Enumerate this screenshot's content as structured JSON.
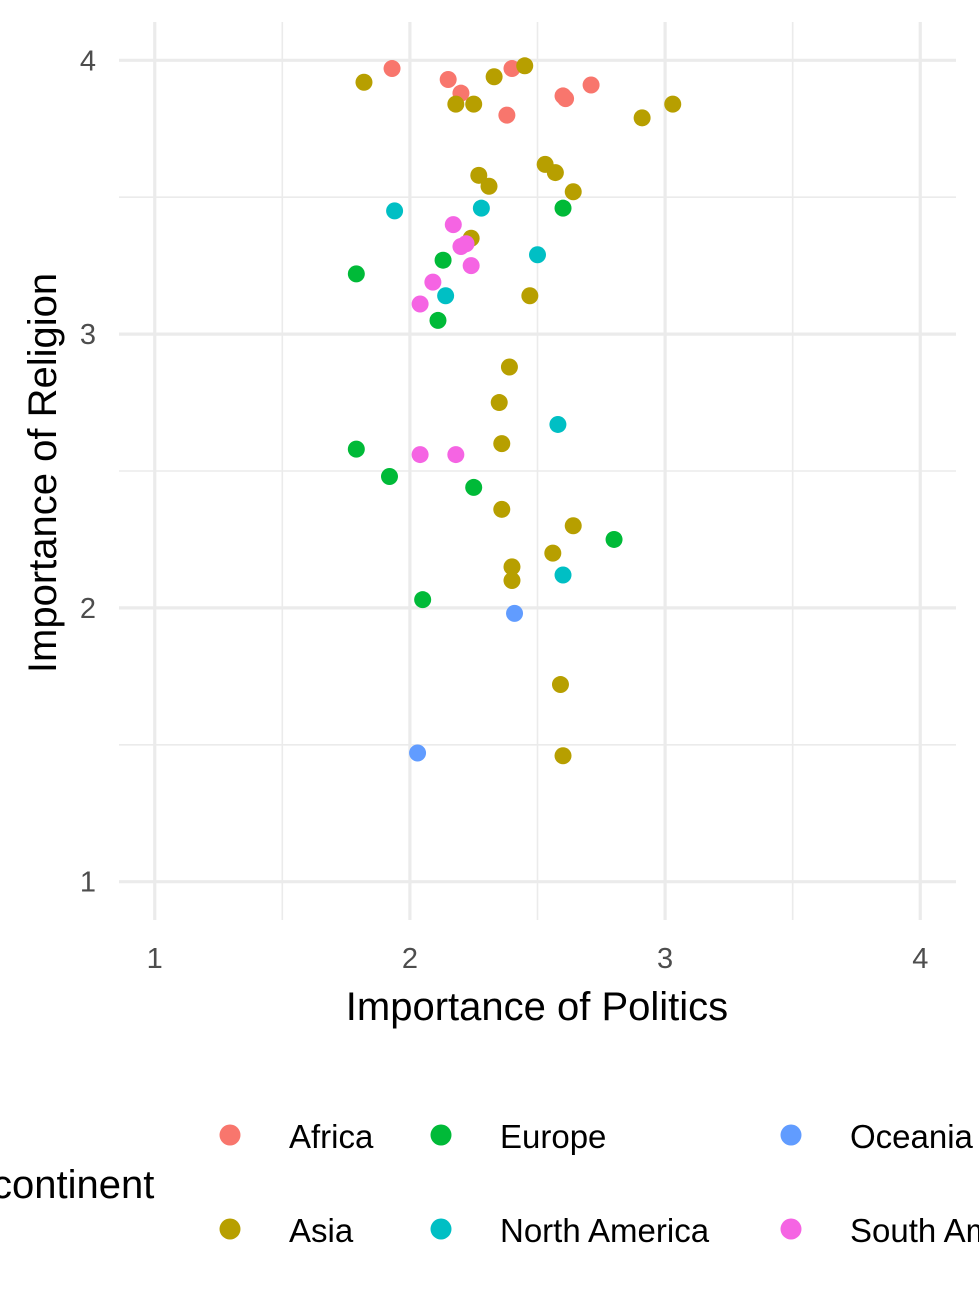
{
  "chart_data": {
    "type": "scatter",
    "xlabel": "Importance of Politics",
    "ylabel": "Importance of Religion",
    "xlim": [
      0.86,
      4.14
    ],
    "ylim": [
      0.86,
      4.14
    ],
    "xticks": [
      "1",
      "2",
      "3",
      "4"
    ],
    "yticks": [
      "1",
      "2",
      "3",
      "4"
    ],
    "grid": true,
    "legend": {
      "title": "continent",
      "position": "bottom",
      "entries": [
        "Africa",
        "Asia",
        "Europe",
        "North America",
        "Oceania",
        "South America"
      ]
    },
    "series": [
      {
        "name": "Africa",
        "color": "#F8766D",
        "points": [
          [
            1.93,
            3.97
          ],
          [
            2.15,
            3.93
          ],
          [
            2.2,
            3.88
          ],
          [
            2.4,
            3.97
          ],
          [
            2.38,
            3.8
          ],
          [
            2.6,
            3.87
          ],
          [
            2.61,
            3.86
          ],
          [
            2.71,
            3.91
          ]
        ]
      },
      {
        "name": "Asia",
        "color": "#B79F00",
        "points": [
          [
            1.82,
            3.92
          ],
          [
            2.18,
            3.84
          ],
          [
            2.25,
            3.84
          ],
          [
            2.33,
            3.94
          ],
          [
            2.45,
            3.98
          ],
          [
            2.91,
            3.79
          ],
          [
            3.03,
            3.84
          ],
          [
            2.27,
            3.58
          ],
          [
            2.31,
            3.54
          ],
          [
            2.53,
            3.62
          ],
          [
            2.57,
            3.59
          ],
          [
            2.64,
            3.52
          ],
          [
            2.24,
            3.35
          ],
          [
            2.47,
            3.14
          ],
          [
            2.39,
            2.88
          ],
          [
            2.35,
            2.75
          ],
          [
            2.36,
            2.6
          ],
          [
            2.36,
            2.36
          ],
          [
            2.64,
            2.3
          ],
          [
            2.56,
            2.2
          ],
          [
            2.4,
            2.15
          ],
          [
            2.4,
            2.1
          ],
          [
            2.59,
            1.72
          ],
          [
            2.6,
            1.46
          ]
        ]
      },
      {
        "name": "Europe",
        "color": "#00BA38",
        "points": [
          [
            2.6,
            3.46
          ],
          [
            1.79,
            3.22
          ],
          [
            2.13,
            3.27
          ],
          [
            2.11,
            3.05
          ],
          [
            1.79,
            2.58
          ],
          [
            1.92,
            2.48
          ],
          [
            2.25,
            2.44
          ],
          [
            2.8,
            2.25
          ],
          [
            2.05,
            2.03
          ]
        ]
      },
      {
        "name": "North America",
        "color": "#00BFC4",
        "points": [
          [
            1.94,
            3.45
          ],
          [
            2.28,
            3.46
          ],
          [
            2.5,
            3.29
          ],
          [
            2.14,
            3.14
          ],
          [
            2.58,
            2.67
          ],
          [
            2.6,
            2.12
          ]
        ]
      },
      {
        "name": "Oceania",
        "color": "#619CFF",
        "points": [
          [
            2.41,
            1.98
          ],
          [
            2.03,
            1.47
          ]
        ]
      },
      {
        "name": "South America",
        "color": "#F564E3",
        "points": [
          [
            2.17,
            3.4
          ],
          [
            2.2,
            3.32
          ],
          [
            2.22,
            3.33
          ],
          [
            2.24,
            3.25
          ],
          [
            2.09,
            3.19
          ],
          [
            2.04,
            3.11
          ],
          [
            2.04,
            2.56
          ],
          [
            2.18,
            2.56
          ]
        ]
      }
    ]
  }
}
